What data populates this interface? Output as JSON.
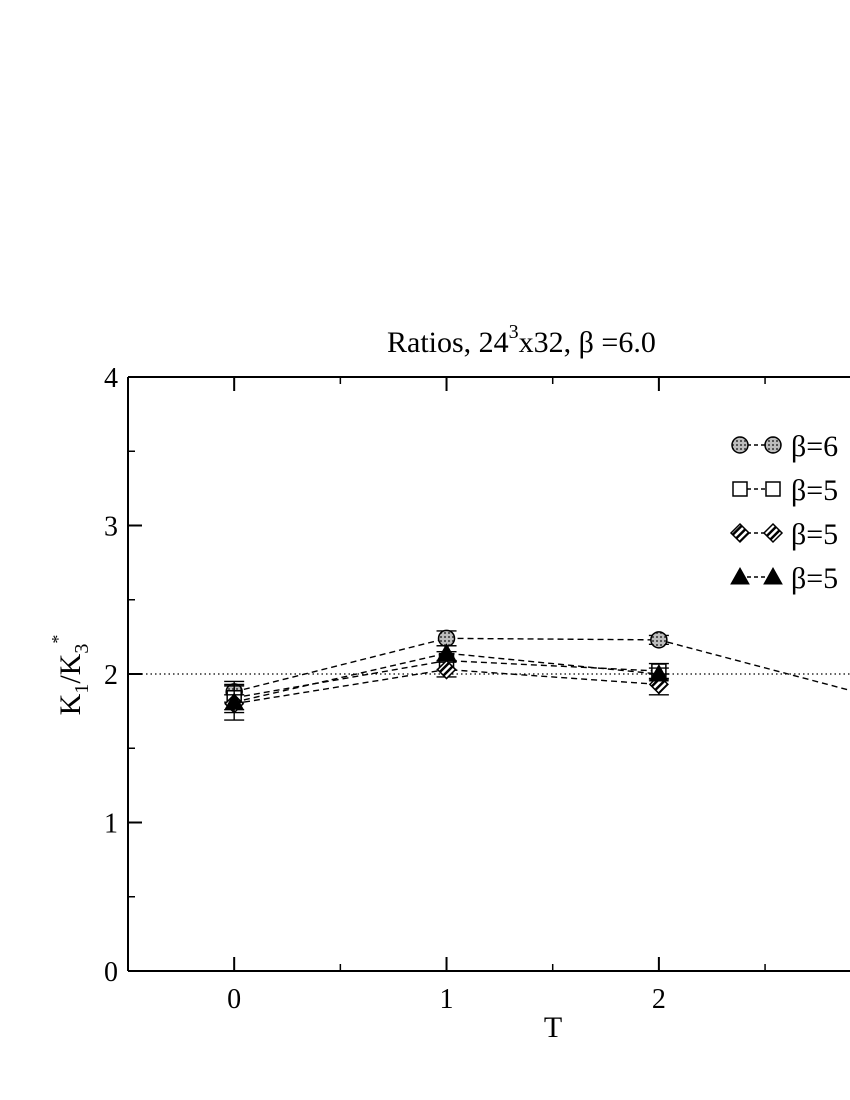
{
  "chart_data": {
    "type": "line",
    "title": "Ratios, 24",
    "title_sup": "3",
    "title_rest": "x32,  β =6.0",
    "xlabel": "T",
    "ylabel": {
      "main": "K",
      "sub1": "1",
      "slash": "/K",
      "sub2": "3",
      "sup": "*"
    },
    "xlim": [
      -0.5,
      2.9
    ],
    "ylim": [
      0,
      4
    ],
    "xticks": [
      0,
      1,
      2
    ],
    "yticks": [
      0,
      1,
      2,
      3,
      4
    ],
    "xtick_labels": [
      "0",
      "1",
      "2"
    ],
    "ytick_labels": [
      "0",
      "1",
      "2",
      "3",
      "4"
    ],
    "reference_line": {
      "y": 2,
      "style": "dotted"
    },
    "legend_position": "top-right",
    "series": [
      {
        "name": "β=6",
        "marker": "circle-gray",
        "x": [
          0,
          1,
          2,
          2.9
        ],
        "y": [
          1.88,
          2.24,
          2.23,
          1.89
        ],
        "err": [
          0.07,
          0.05,
          0.03,
          0
        ]
      },
      {
        "name": "β=5",
        "marker": "square-open",
        "x": [
          0,
          1,
          2
        ],
        "y": [
          1.84,
          2.09,
          2.02
        ],
        "err": [
          0.08,
          0.06,
          0.05
        ]
      },
      {
        "name": "β=5",
        "marker": "diamond-hatched",
        "x": [
          0,
          1,
          2
        ],
        "y": [
          1.8,
          2.03,
          1.93
        ],
        "err": [
          0.06,
          0.05,
          0.07
        ]
      },
      {
        "name": "β=5",
        "marker": "triangle-filled",
        "x": [
          0,
          1,
          2
        ],
        "y": [
          1.81,
          2.14,
          2.0
        ],
        "err": [
          0.12,
          0.05,
          0.04
        ]
      }
    ]
  }
}
